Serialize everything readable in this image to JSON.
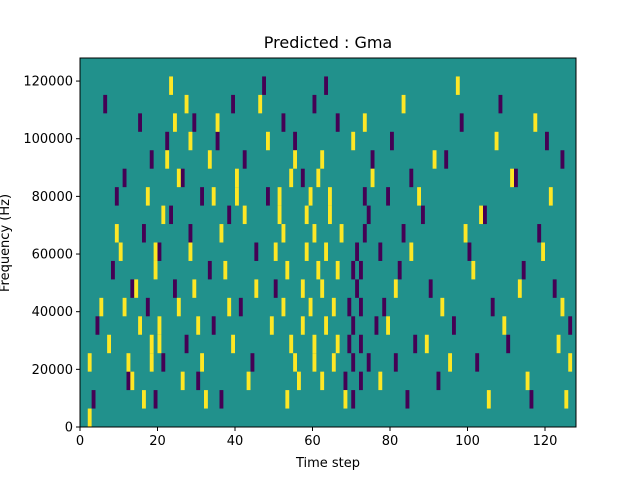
{
  "chart_data": {
    "type": "heatmap",
    "title": "Predicted : Gma",
    "xlabel": "Time step",
    "ylabel": "Frequency (Hz)",
    "xlim": [
      0,
      128
    ],
    "ylim": [
      0,
      128000
    ],
    "x_ticks": [
      0,
      20,
      40,
      60,
      80,
      100,
      120
    ],
    "y_ticks": [
      0,
      20000,
      40000,
      60000,
      80000,
      100000,
      120000
    ],
    "x_tick_labels": [
      "0",
      "20",
      "40",
      "60",
      "80",
      "100",
      "120"
    ],
    "y_tick_labels": [
      "0",
      "20000",
      "40000",
      "60000",
      "80000",
      "100000",
      "120000"
    ],
    "grid": false,
    "legend": "none",
    "colors": {
      "background": "#21918c",
      "low": "#440154",
      "high": "#fde725"
    },
    "cells_yellow": [
      [
        2,
        0
      ],
      [
        2,
        3
      ],
      [
        5,
        6
      ],
      [
        7,
        4
      ],
      [
        9,
        10
      ],
      [
        10,
        9
      ],
      [
        11,
        6
      ],
      [
        12,
        3
      ],
      [
        13,
        2
      ],
      [
        14,
        7
      ],
      [
        15,
        5
      ],
      [
        16,
        1
      ],
      [
        17,
        12
      ],
      [
        18,
        3
      ],
      [
        18,
        4
      ],
      [
        19,
        8
      ],
      [
        19,
        9
      ],
      [
        20,
        4
      ],
      [
        20,
        5
      ],
      [
        21,
        11
      ],
      [
        22,
        14
      ],
      [
        23,
        18
      ],
      [
        24,
        16
      ],
      [
        25,
        13
      ],
      [
        25,
        6
      ],
      [
        26,
        2
      ],
      [
        27,
        17
      ],
      [
        28,
        15
      ],
      [
        28,
        9
      ],
      [
        29,
        7
      ],
      [
        30,
        5
      ],
      [
        31,
        3
      ],
      [
        32,
        1
      ],
      [
        33,
        14
      ],
      [
        34,
        12
      ],
      [
        35,
        16
      ],
      [
        36,
        10
      ],
      [
        37,
        8
      ],
      [
        38,
        6
      ],
      [
        39,
        4
      ],
      [
        40,
        13
      ],
      [
        40,
        12
      ],
      [
        42,
        11
      ],
      [
        43,
        2
      ],
      [
        45,
        7
      ],
      [
        46,
        17
      ],
      [
        48,
        15
      ],
      [
        49,
        5
      ],
      [
        50,
        9
      ],
      [
        51,
        11
      ],
      [
        51,
        12
      ],
      [
        52,
        6
      ],
      [
        52,
        10
      ],
      [
        53,
        1
      ],
      [
        53,
        8
      ],
      [
        54,
        4
      ],
      [
        54,
        13
      ],
      [
        55,
        3
      ],
      [
        55,
        14
      ],
      [
        56,
        2
      ],
      [
        57,
        7
      ],
      [
        57,
        5
      ],
      [
        58,
        9
      ],
      [
        58,
        11
      ],
      [
        59,
        12
      ],
      [
        59,
        6
      ],
      [
        60,
        10
      ],
      [
        60,
        3
      ],
      [
        60,
        4
      ],
      [
        61,
        8
      ],
      [
        61,
        13
      ],
      [
        62,
        2
      ],
      [
        62,
        14
      ],
      [
        62,
        7
      ],
      [
        63,
        5
      ],
      [
        63,
        9
      ],
      [
        64,
        12
      ],
      [
        64,
        11
      ],
      [
        65,
        6
      ],
      [
        65,
        3
      ],
      [
        66,
        4
      ],
      [
        66,
        8
      ],
      [
        67,
        10
      ],
      [
        68,
        1
      ],
      [
        70,
        15
      ],
      [
        73,
        16
      ],
      [
        75,
        13
      ],
      [
        77,
        2
      ],
      [
        79,
        5
      ],
      [
        81,
        7
      ],
      [
        83,
        17
      ],
      [
        85,
        9
      ],
      [
        87,
        12
      ],
      [
        89,
        4
      ],
      [
        91,
        14
      ],
      [
        93,
        6
      ],
      [
        95,
        3
      ],
      [
        97,
        18
      ],
      [
        99,
        10
      ],
      [
        101,
        8
      ],
      [
        103,
        11
      ],
      [
        105,
        1
      ],
      [
        107,
        15
      ],
      [
        109,
        5
      ],
      [
        111,
        13
      ],
      [
        113,
        7
      ],
      [
        115,
        2
      ],
      [
        117,
        16
      ],
      [
        119,
        9
      ],
      [
        121,
        12
      ],
      [
        123,
        4
      ],
      [
        124,
        6
      ],
      [
        125,
        1
      ],
      [
        126,
        3
      ]
    ],
    "cells_purple": [
      [
        3,
        1
      ],
      [
        4,
        5
      ],
      [
        6,
        17
      ],
      [
        8,
        8
      ],
      [
        9,
        12
      ],
      [
        11,
        13
      ],
      [
        12,
        2
      ],
      [
        13,
        7
      ],
      [
        15,
        16
      ],
      [
        16,
        10
      ],
      [
        17,
        6
      ],
      [
        18,
        14
      ],
      [
        19,
        1
      ],
      [
        20,
        9
      ],
      [
        21,
        3
      ],
      [
        22,
        15
      ],
      [
        23,
        11
      ],
      [
        24,
        7
      ],
      [
        26,
        13
      ],
      [
        27,
        4
      ],
      [
        28,
        10
      ],
      [
        29,
        16
      ],
      [
        30,
        2
      ],
      [
        31,
        12
      ],
      [
        33,
        8
      ],
      [
        34,
        5
      ],
      [
        35,
        15
      ],
      [
        36,
        1
      ],
      [
        38,
        11
      ],
      [
        39,
        17
      ],
      [
        41,
        6
      ],
      [
        42,
        14
      ],
      [
        44,
        3
      ],
      [
        45,
        9
      ],
      [
        47,
        18
      ],
      [
        48,
        12
      ],
      [
        50,
        7
      ],
      [
        52,
        16
      ],
      [
        55,
        15
      ],
      [
        57,
        13
      ],
      [
        60,
        17
      ],
      [
        63,
        18
      ],
      [
        66,
        16
      ],
      [
        68,
        2
      ],
      [
        69,
        4
      ],
      [
        69,
        6
      ],
      [
        70,
        8
      ],
      [
        70,
        1
      ],
      [
        70,
        3
      ],
      [
        70,
        5
      ],
      [
        71,
        7
      ],
      [
        71,
        9
      ],
      [
        72,
        2
      ],
      [
        72,
        4
      ],
      [
        72,
        6
      ],
      [
        72,
        8
      ],
      [
        73,
        10
      ],
      [
        73,
        12
      ],
      [
        74,
        3
      ],
      [
        74,
        11
      ],
      [
        75,
        14
      ],
      [
        76,
        5
      ],
      [
        77,
        9
      ],
      [
        78,
        6
      ],
      [
        79,
        12
      ],
      [
        80,
        15
      ],
      [
        81,
        3
      ],
      [
        82,
        8
      ],
      [
        83,
        10
      ],
      [
        84,
        1
      ],
      [
        85,
        13
      ],
      [
        86,
        4
      ],
      [
        88,
        11
      ],
      [
        90,
        7
      ],
      [
        92,
        2
      ],
      [
        94,
        14
      ],
      [
        96,
        5
      ],
      [
        98,
        16
      ],
      [
        100,
        9
      ],
      [
        102,
        3
      ],
      [
        104,
        11
      ],
      [
        106,
        6
      ],
      [
        108,
        17
      ],
      [
        110,
        4
      ],
      [
        112,
        13
      ],
      [
        114,
        8
      ],
      [
        116,
        1
      ],
      [
        118,
        10
      ],
      [
        120,
        15
      ],
      [
        122,
        7
      ],
      [
        124,
        14
      ],
      [
        126,
        5
      ]
    ]
  }
}
